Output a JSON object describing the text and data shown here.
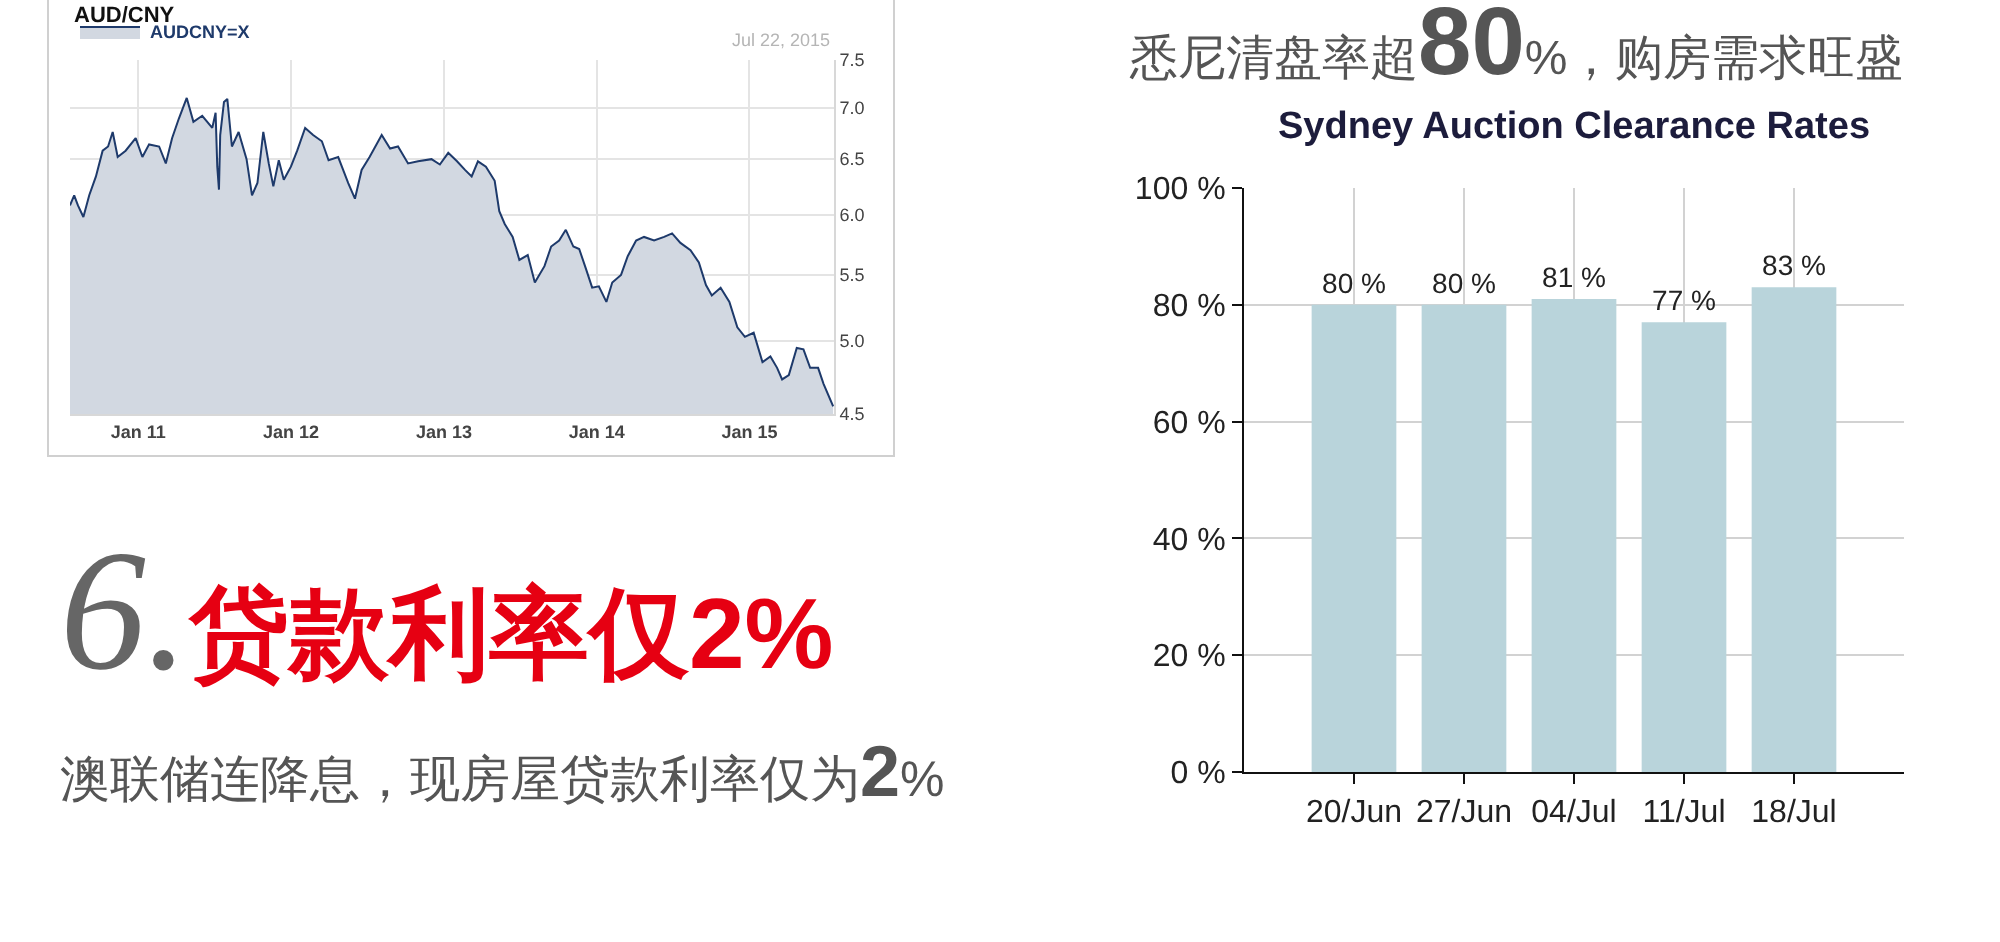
{
  "chart_data": [
    {
      "type": "area",
      "title": "AUD/CNY",
      "annotations": [
        "Jul 22, 2015"
      ],
      "x": [
        "2010-07-22",
        "2010-08-01",
        "2010-08-10",
        "2010-08-23",
        "2010-09-06",
        "2010-09-22",
        "2010-10-08",
        "2010-10-21",
        "2010-11-01",
        "2010-11-13",
        "2010-12-02",
        "2010-12-26",
        "2011-01-11",
        "2011-01-27",
        "2011-02-20",
        "2011-03-08",
        "2011-03-23",
        "2011-04-08",
        "2011-04-27",
        "2011-05-13",
        "2011-06-03",
        "2011-06-27",
        "2011-07-05",
        "2011-07-09",
        "2011-07-13",
        "2011-07-16",
        "2011-07-25",
        "2011-08-02",
        "2011-08-13",
        "2011-08-29",
        "2011-09-17",
        "2011-09-30",
        "2011-10-13",
        "2011-10-27",
        "2011-11-09",
        "2011-11-20",
        "2011-12-03",
        "2011-12-15",
        "2012-01-01",
        "2012-01-16",
        "2012-02-04",
        "2012-02-23",
        "2012-03-15",
        "2012-03-31",
        "2012-04-23",
        "2012-05-17",
        "2012-06-02",
        "2012-06-18",
        "2012-07-07",
        "2012-08-05",
        "2012-08-25",
        "2012-09-13",
        "2012-10-07",
        "2012-10-31",
        "2012-12-02",
        "2012-12-22",
        "2013-01-11",
        "2013-02-01",
        "2013-02-20",
        "2013-03-08",
        "2013-03-23",
        "2013-04-11",
        "2013-05-02",
        "2013-05-13",
        "2013-05-26",
        "2013-06-14",
        "2013-06-30",
        "2013-07-20",
        "2013-08-06",
        "2013-08-29",
        "2013-09-14",
        "2013-10-03",
        "2013-10-19",
        "2013-11-06",
        "2013-11-20",
        "2013-12-06",
        "2013-12-21",
        "2014-01-06",
        "2014-01-24",
        "2014-02-07",
        "2014-02-28",
        "2014-03-16",
        "2014-04-05",
        "2014-04-24",
        "2014-05-18",
        "2014-06-11",
        "2014-06-30",
        "2014-07-20",
        "2014-08-13",
        "2014-09-02",
        "2014-09-19",
        "2014-10-03",
        "2014-10-24",
        "2014-11-14",
        "2014-12-03",
        "2014-12-21",
        "2015-01-11",
        "2015-02-01",
        "2015-02-20",
        "2015-03-08",
        "2015-03-20",
        "2015-04-05",
        "2015-04-24",
        "2015-05-10",
        "2015-05-26",
        "2015-06-14",
        "2015-06-27",
        "2015-07-20"
      ],
      "series": [
        {
          "name": "AUDCNY=X",
          "color": "#1e3a6b",
          "values": [
            6.08,
            6.17,
            6.08,
            5.98,
            6.17,
            6.34,
            6.58,
            6.62,
            6.76,
            6.52,
            6.58,
            6.7,
            6.52,
            6.64,
            6.62,
            6.46,
            6.7,
            6.89,
            7.1,
            6.86,
            6.92,
            6.8,
            6.95,
            6.43,
            6.22,
            6.73,
            7.06,
            7.09,
            6.62,
            6.76,
            6.5,
            6.17,
            6.28,
            6.76,
            6.46,
            6.25,
            6.49,
            6.31,
            6.43,
            6.58,
            6.8,
            6.73,
            6.67,
            6.49,
            6.52,
            6.28,
            6.14,
            6.4,
            6.52,
            6.73,
            6.6,
            6.62,
            6.46,
            6.48,
            6.5,
            6.45,
            6.56,
            6.48,
            6.4,
            6.34,
            6.48,
            6.43,
            6.3,
            6.03,
            5.92,
            5.81,
            5.62,
            5.66,
            5.44,
            5.57,
            5.73,
            5.78,
            5.87,
            5.73,
            5.71,
            5.55,
            5.4,
            5.41,
            5.29,
            5.44,
            5.5,
            5.65,
            5.78,
            5.81,
            5.78,
            5.81,
            5.84,
            5.76,
            5.7,
            5.6,
            5.42,
            5.34,
            5.4,
            5.29,
            5.1,
            5.03,
            5.06,
            4.85,
            4.89,
            4.81,
            4.73,
            4.76,
            4.95,
            4.94,
            4.81,
            4.81,
            4.7,
            4.55
          ]
        }
      ],
      "xlim": [
        "2010-07-22",
        "2015-07-22"
      ],
      "xticks": [
        {
          "value": "2011-01-01",
          "label": "Jan 11"
        },
        {
          "value": "2012-01-01",
          "label": "Jan 12"
        },
        {
          "value": "2013-01-01",
          "label": "Jan 13"
        },
        {
          "value": "2014-01-01",
          "label": "Jan 14"
        },
        {
          "value": "2015-01-01",
          "label": "Jan 15"
        }
      ],
      "ylim": [
        4.5,
        7.5
      ],
      "yticks": [
        4.5,
        {
          "value": 5,
          "label": "5.0"
        },
        5.5,
        {
          "value": 6,
          "label": "6.0"
        },
        6.5,
        {
          "value": 7,
          "label": "7.0"
        },
        7.5
      ],
      "log": "y",
      "grid": true,
      "legend": "top left"
    },
    {
      "type": "bar",
      "title": "Sydney Auction Clearance Rates",
      "annotations": [
        "悉尼清盘率超80%，购房需求旺盛"
      ],
      "categories": [
        "20/Jun",
        "27/Jun",
        "04/Jul",
        "11/Jul",
        "18/Jul"
      ],
      "values": [
        80,
        80,
        81,
        77,
        83
      ],
      "value_labels": [
        "80 %",
        "80 %",
        "81 %",
        "77 %",
        "83 %"
      ],
      "color": "#b9d4db",
      "ylim": [
        0,
        100
      ],
      "yticks": [
        {
          "value": 0,
          "label": "0 %"
        },
        {
          "value": 20,
          "label": "20 %"
        },
        {
          "value": 40,
          "label": "40 %"
        },
        {
          "value": 60,
          "label": "60 %"
        },
        {
          "value": 80,
          "label": "80 %"
        },
        {
          "value": 100,
          "label": "100 %"
        }
      ],
      "grid": true
    },
    {
      "type": "other",
      "title": "6.贷款利率仅2%",
      "annotations": [
        "澳联储连降息，现房屋贷款利率仅为2%"
      ]
    }
  ]
}
